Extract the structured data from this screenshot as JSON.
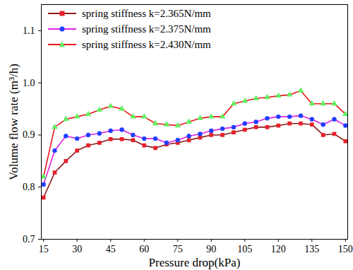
{
  "chart_data": {
    "type": "line",
    "x_label": "Pressure drop(kPa)",
    "y_label": "Volume flow rate (m³/h)",
    "x": [
      15,
      20,
      25,
      30,
      35,
      40,
      45,
      50,
      55,
      60,
      65,
      70,
      75,
      80,
      85,
      90,
      95,
      100,
      105,
      110,
      115,
      120,
      125,
      130,
      135,
      140,
      145,
      150
    ],
    "xlim": [
      14,
      151
    ],
    "xticks": [
      15,
      30,
      45,
      60,
      75,
      90,
      105,
      120,
      135,
      150
    ],
    "ylim": [
      0.7,
      1.15
    ],
    "yticks": [
      0.7,
      0.8,
      0.9,
      {
        "value": 1,
        "label": "1.0"
      },
      1.1
    ],
    "legend": "top-left",
    "series": [
      {
        "name": "spring stiffness k=2.365N/mm",
        "color": "#8b1a1a",
        "marker": "square",
        "values": [
          0.78,
          0.828,
          0.85,
          0.87,
          0.88,
          0.885,
          0.892,
          0.892,
          0.89,
          0.88,
          0.875,
          0.882,
          0.885,
          0.89,
          0.895,
          0.9,
          0.9,
          0.905,
          0.91,
          0.915,
          0.915,
          0.918,
          0.922,
          0.922,
          0.92,
          0.9,
          0.902,
          0.888
        ]
      },
      {
        "name": "spring stiffness k=2.375N/mm",
        "color": "#e020e0",
        "marker": "circle",
        "values": [
          0.805,
          0.87,
          0.898,
          0.893,
          0.9,
          0.903,
          0.908,
          0.91,
          0.9,
          0.893,
          0.893,
          0.885,
          0.89,
          0.898,
          0.902,
          0.908,
          0.912,
          0.915,
          0.922,
          0.925,
          0.932,
          0.935,
          0.935,
          0.937,
          0.93,
          0.92,
          0.93,
          0.918
        ]
      },
      {
        "name": "spring stiffness k=2.430N/mm",
        "color": "#e8171b",
        "marker": "triangle",
        "values": [
          0.82,
          0.915,
          0.93,
          0.935,
          0.94,
          0.948,
          0.955,
          0.95,
          0.935,
          0.935,
          0.922,
          0.92,
          0.918,
          0.925,
          0.932,
          0.935,
          0.935,
          0.96,
          0.965,
          0.97,
          0.972,
          0.975,
          0.977,
          0.985,
          0.96,
          0.96,
          0.96,
          0.94
        ]
      }
    ]
  }
}
